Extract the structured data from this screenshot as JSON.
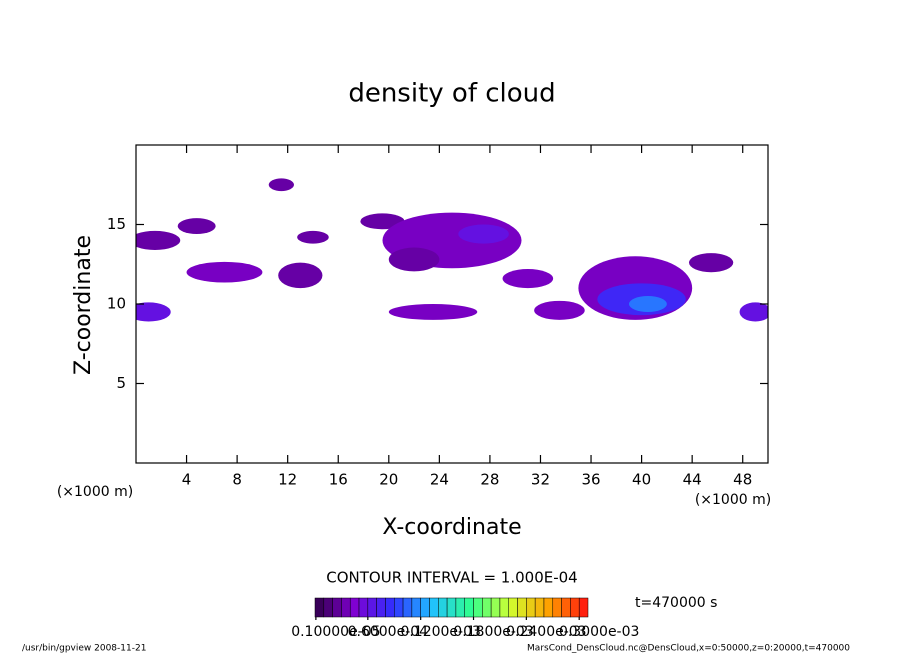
{
  "chart_data": {
    "type": "contour",
    "title": "density of cloud",
    "xlabel": "X-coordinate",
    "ylabel": "Z-coordinate",
    "x_unit": "(×1000 m)",
    "xlim": [
      0,
      50
    ],
    "xticks": [
      4,
      8,
      12,
      16,
      20,
      24,
      28,
      32,
      36,
      40,
      44,
      48
    ],
    "ylim": [
      0,
      20
    ],
    "yticks": [
      5,
      10,
      15
    ],
    "contour_interval": "CONTOUR INTERVAL = 1.000E-04",
    "time_label": "t=470000 s",
    "clim": [
      0,
      0.00031
    ],
    "colormap": [
      "#30004a",
      "#8000d0",
      "#3030ff",
      "#20c0ff",
      "#30ff90",
      "#d0ff30",
      "#ffa000",
      "#ff1010"
    ],
    "colorbar_ticks": [
      {
        "value": 1e-06,
        "label": "0.10000e-05"
      },
      {
        "value": 6e-05,
        "label": "0.6000e-04"
      },
      {
        "value": 0.00012,
        "label": "0.1200e-03"
      },
      {
        "value": 0.00018,
        "label": "0.1800e-03"
      },
      {
        "value": 0.00024,
        "label": "0.2400e-03"
      },
      {
        "value": 0.0003,
        "label": "0.3000e-03"
      }
    ],
    "blobs": {
      "x": [
        1.5,
        4.8,
        1.0,
        7.0,
        11.5,
        13.0,
        14.0,
        19.5,
        25.0,
        27.5,
        23.5,
        31.0,
        33.5,
        39.5,
        40.0,
        40.5,
        45.5,
        49.0,
        22.0
      ],
      "z": [
        14.0,
        14.9,
        9.5,
        12.0,
        17.5,
        11.8,
        14.2,
        15.2,
        14.0,
        14.4,
        9.5,
        11.6,
        9.6,
        11.0,
        10.3,
        10.0,
        12.6,
        9.5,
        12.8
      ],
      "width": [
        4.0,
        3.0,
        3.5,
        6.0,
        2.0,
        3.5,
        2.5,
        3.5,
        11.0,
        4.0,
        7.0,
        4.0,
        4.0,
        9.0,
        7.0,
        3.0,
        3.5,
        2.5,
        4.0
      ],
      "height": [
        1.2,
        1.0,
        1.2,
        1.3,
        0.8,
        1.6,
        0.8,
        1.0,
        3.5,
        1.2,
        1.0,
        1.2,
        1.2,
        4.0,
        2.0,
        1.0,
        1.2,
        1.2,
        1.5
      ],
      "values": [
        3e-05,
        3e-05,
        6e-05,
        4e-05,
        3e-05,
        3e-05,
        3e-05,
        3e-05,
        4e-05,
        6e-05,
        4e-05,
        4e-05,
        4e-05,
        4e-05,
        8e-05,
        0.00011,
        3e-05,
        6e-05,
        3e-05
      ]
    },
    "footer_left": "/usr/bin/gpview   2008-11-21",
    "footer_right": "MarsCond_DensCloud.nc@DensCloud,x=0:50000,z=0:20000,t=470000"
  }
}
